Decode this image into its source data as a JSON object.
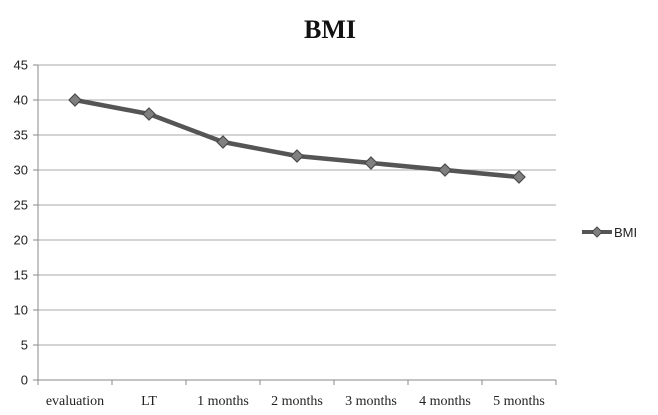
{
  "chart_data": {
    "type": "line",
    "title": "BMI",
    "categories": [
      "evaluation",
      "LT",
      "1 months",
      "2 months",
      "3 months",
      "4 months",
      "5 months"
    ],
    "series": [
      {
        "name": "BMI",
        "values": [
          40,
          38,
          34,
          32,
          31,
          30,
          29
        ],
        "color": "#555555",
        "marker": "diamond"
      }
    ],
    "xlabel": "",
    "ylabel": "",
    "ylim": [
      0,
      45
    ],
    "yticks": [
      0,
      5,
      10,
      15,
      20,
      25,
      30,
      35,
      40,
      45
    ],
    "grid": true,
    "legend": "right"
  }
}
